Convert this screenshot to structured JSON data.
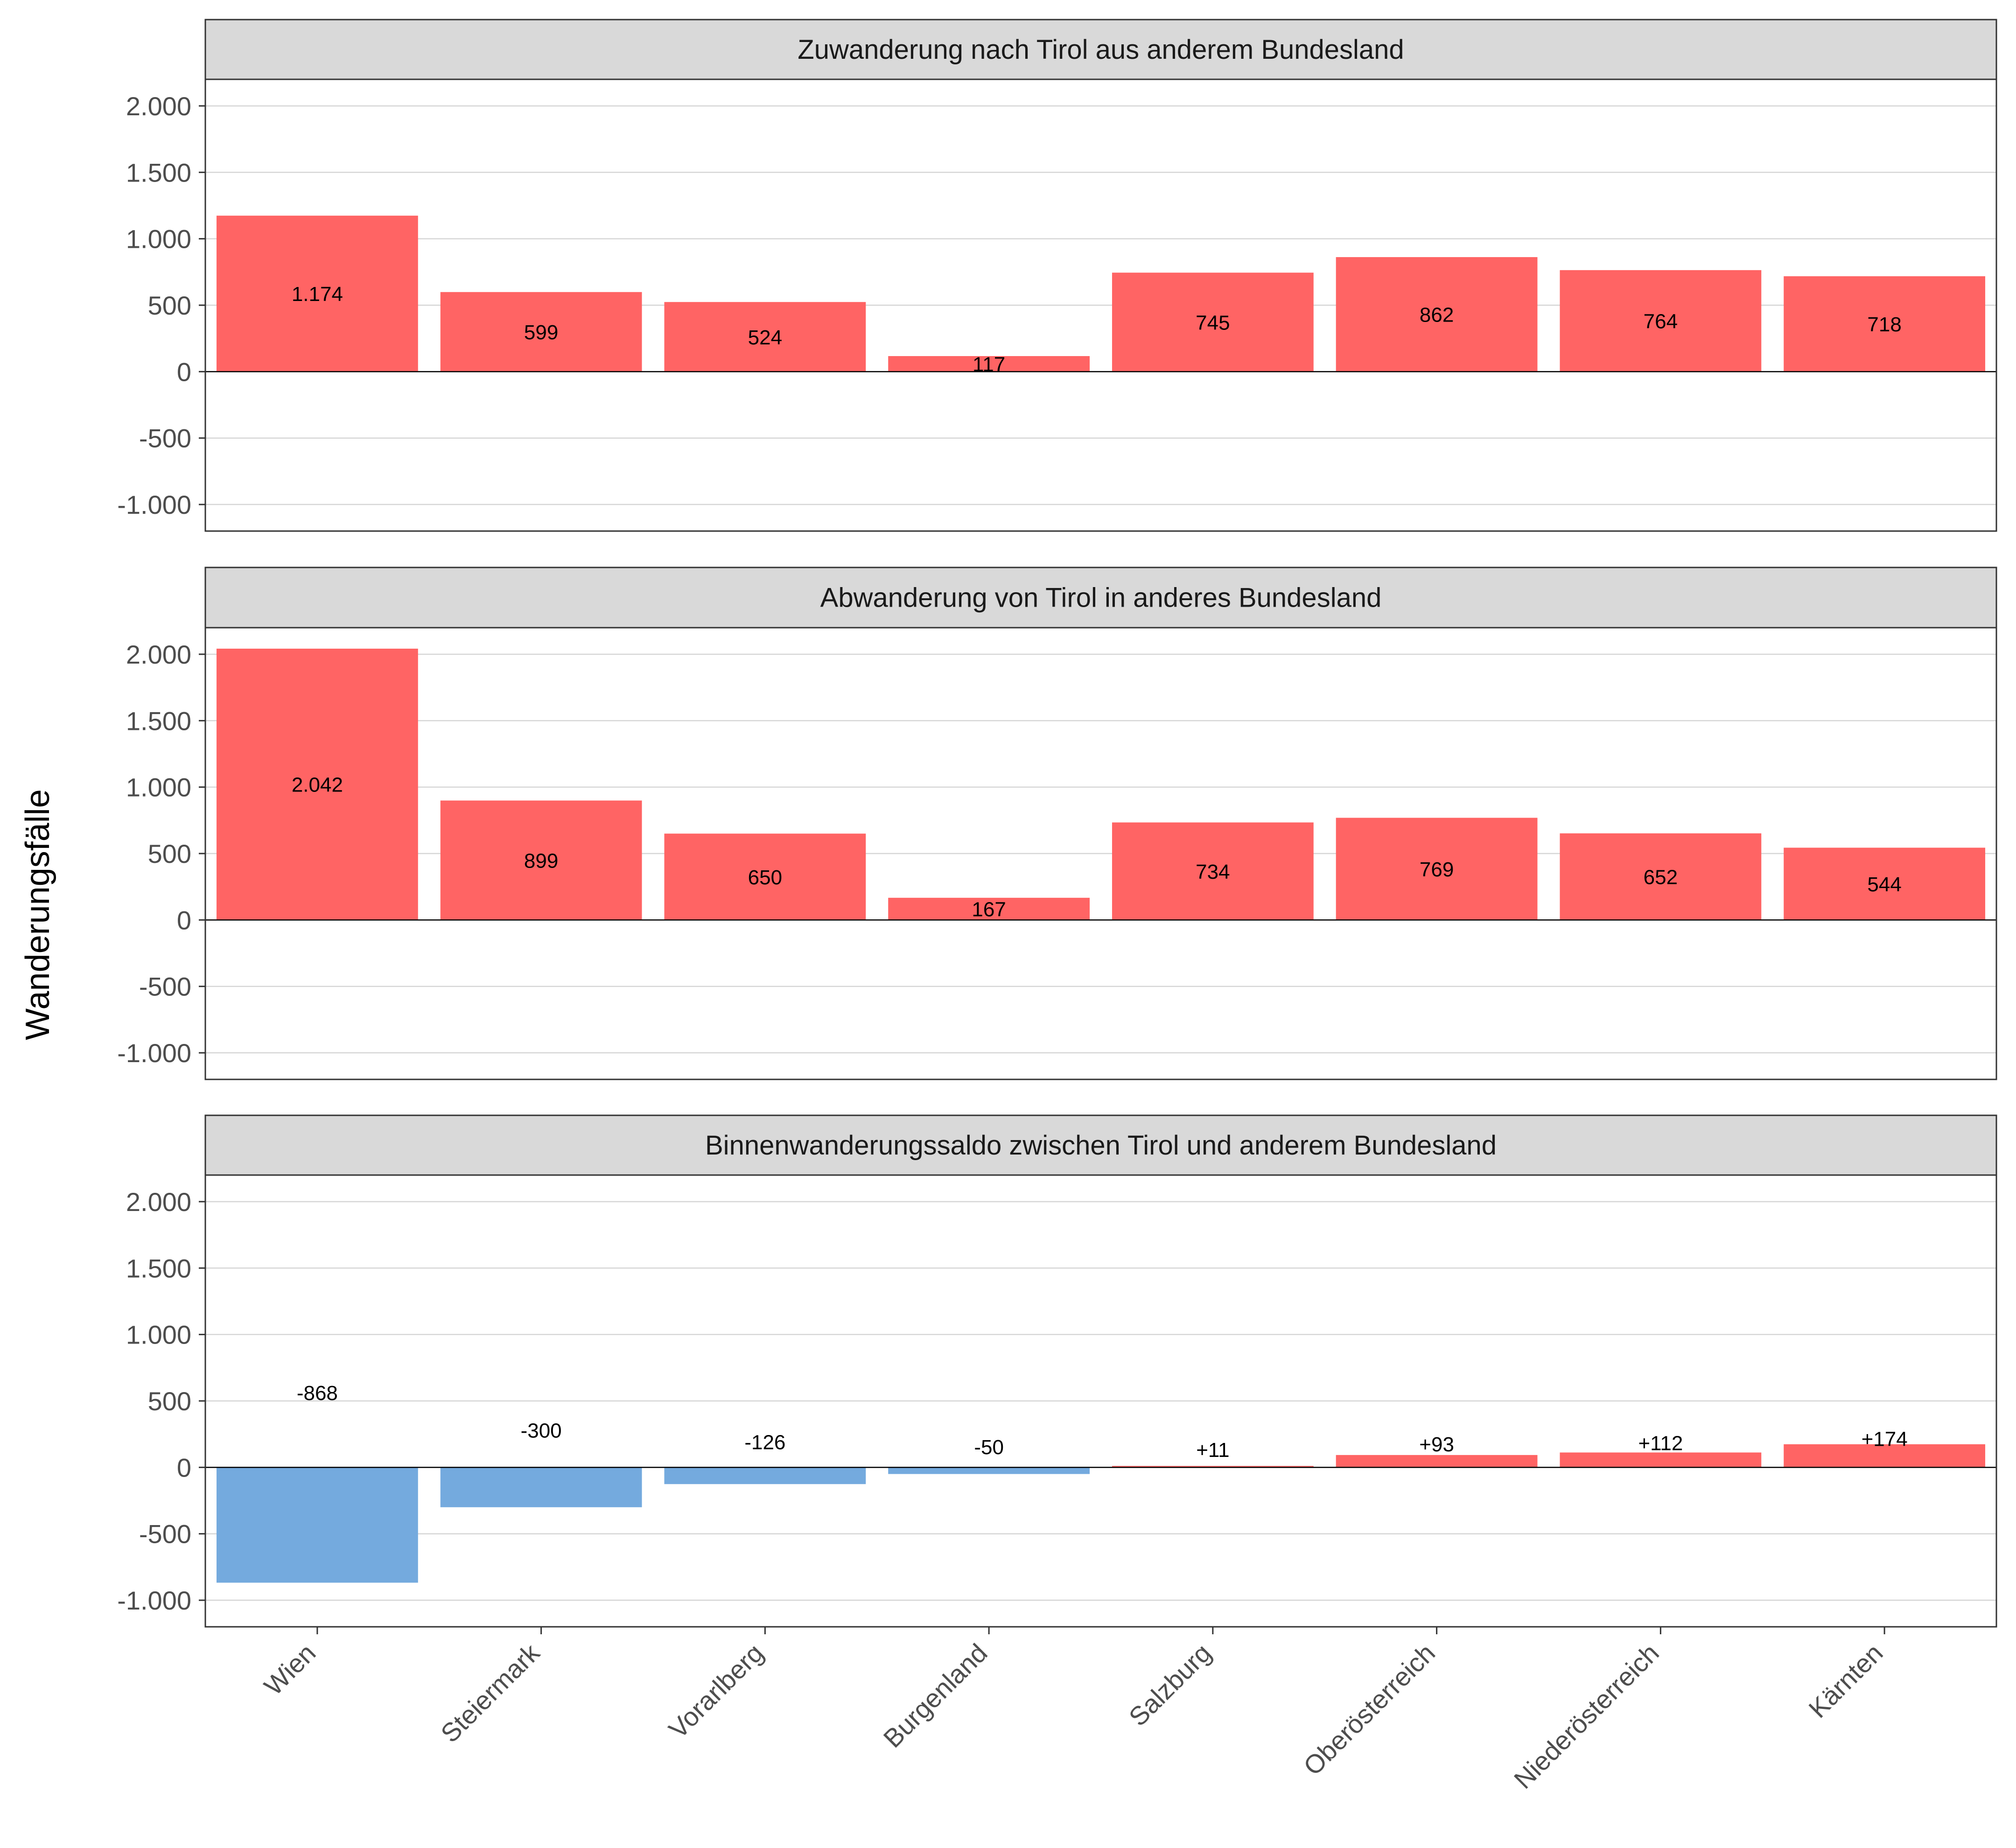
{
  "chart_data": {
    "type": "bar",
    "ylabel": "Wanderungsfälle",
    "ylim": [
      -1200,
      2200
    ],
    "yticks": [
      -1000,
      -500,
      0,
      500,
      1000,
      1500,
      2000
    ],
    "ytick_labels": [
      "-1.000",
      "-500",
      "0",
      "500",
      "1.000",
      "1.500",
      "2.000"
    ],
    "categories": [
      "Wien",
      "Steiermark",
      "Vorarlberg",
      "Burgenland",
      "Salzburg",
      "Oberösterreich",
      "Niederösterreich",
      "Kärnten"
    ],
    "colors": {
      "positive": "#ff6464",
      "negative": "#74aade"
    },
    "panels": [
      {
        "title": "Zuwanderung nach Tirol aus anderem Bundesland",
        "values": [
          1174,
          599,
          524,
          117,
          745,
          862,
          764,
          718
        ],
        "labels": [
          "1.174",
          "599",
          "524",
          "117",
          "745",
          "862",
          "764",
          "718"
        ]
      },
      {
        "title": "Abwanderung von Tirol in anderes Bundesland",
        "values": [
          2042,
          899,
          650,
          167,
          734,
          769,
          652,
          544
        ],
        "labels": [
          "2.042",
          "899",
          "650",
          "167",
          "734",
          "769",
          "652",
          "544"
        ]
      },
      {
        "title": "Binnenwanderungssaldo zwischen Tirol und anderem Bundesland",
        "values": [
          -868,
          -300,
          -126,
          -50,
          11,
          93,
          112,
          174
        ],
        "labels": [
          "-868",
          "-300",
          "-126",
          "-50",
          "+11",
          "+93",
          "+112",
          "+174"
        ]
      }
    ]
  }
}
